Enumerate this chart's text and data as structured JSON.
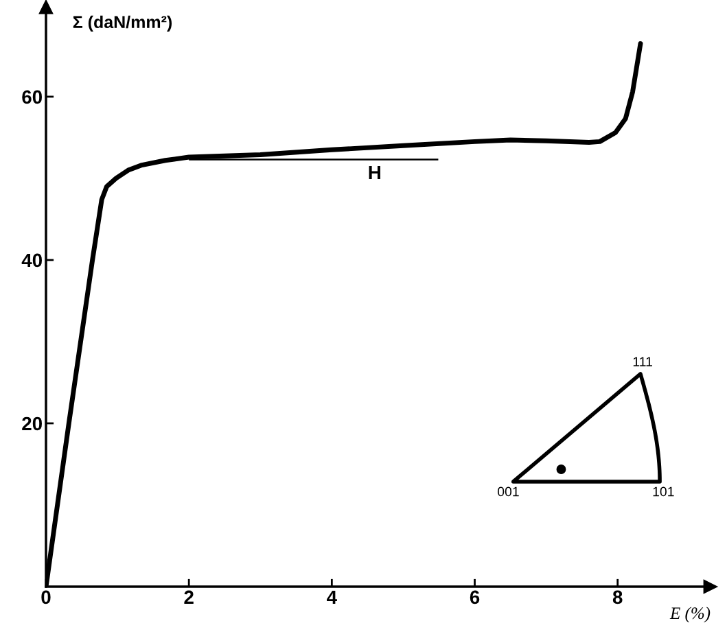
{
  "chart_data": {
    "type": "line",
    "xlabel": "E (%)",
    "ylabel": "Σ (daN/mm²)",
    "x": [
      0,
      0.32,
      0.65,
      0.78,
      0.85,
      0.98,
      1.15,
      1.33,
      1.67,
      2.0,
      3.0,
      4.0,
      5.0,
      6.0,
      6.5,
      7.0,
      7.6,
      7.75,
      7.97,
      8.11,
      8.21,
      8.32
    ],
    "series": [
      {
        "color": "#000000",
        "values": [
          0,
          20,
          40,
          47.4,
          49.0,
          50.0,
          51.0,
          51.6,
          52.2,
          52.6,
          52.9,
          53.5,
          54.0,
          54.5,
          54.7,
          54.6,
          54.4,
          54.5,
          55.6,
          57.3,
          60.6,
          66.5
        ]
      }
    ],
    "xlim": [
      0,
      9.3
    ],
    "ylim": [
      0,
      71
    ],
    "xticks": [
      0,
      2,
      4,
      6,
      8
    ],
    "yticks": [
      20,
      40,
      60
    ],
    "ref_lines": [
      {
        "axis": "y",
        "value": 52.3,
        "label": "H",
        "color": "#000000",
        "line_style": "solid"
      }
    ],
    "annotations": [
      "111",
      "001",
      "101"
    ],
    "grid": false,
    "legend": false,
    "marker": "none",
    "line_style": "solid"
  }
}
